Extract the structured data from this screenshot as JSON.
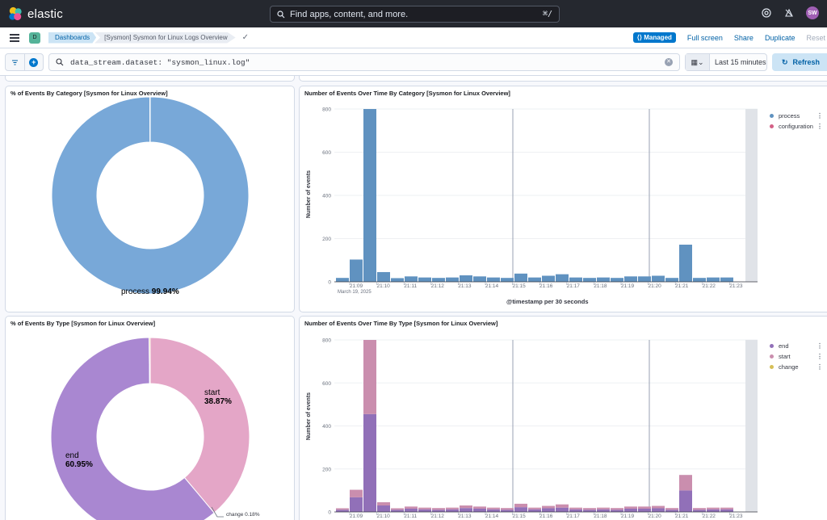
{
  "header": {
    "brand": "elastic",
    "search_placeholder": "Find apps, content, and more.",
    "search_shortcut": "⌘/",
    "avatar_initials": "SW"
  },
  "nav": {
    "space_initial": "D",
    "breadcrumb_root": "Dashboards",
    "breadcrumb_current": "[Sysmon] Sysmon for Linux Logs Overview",
    "managed_badge": "Managed",
    "full_screen": "Full screen",
    "share": "Share",
    "duplicate": "Duplicate",
    "reset": "Reset"
  },
  "query": {
    "text": "data_stream.dataset: \"sysmon_linux.log\"",
    "time_range": "Last 15 minutes",
    "refresh_label": "Refresh"
  },
  "colors": {
    "process": "#6092c0",
    "configuration": "#d36086",
    "end": "#9170b8",
    "start": "#ca8eae",
    "change": "#d6bf57",
    "donut_process": "#78a8d8",
    "donut_end": "#a987d1",
    "donut_start": "#e4a6c7"
  },
  "panels": {
    "category_pie_title": "% of Events By Category [Sysmon for Linux Overview]",
    "category_hist_title": "Number of Events Over Time By Category [Sysmon for Linux Overview]",
    "type_pie_title": "% of Events By Type [Sysmon for Linux Overview]",
    "type_hist_title": "Number of Events Over Time By Type [Sysmon for Linux Overview]"
  },
  "chart_data": [
    {
      "type": "pie",
      "title": "% of Events By Category [Sysmon for Linux Overview]",
      "slices": [
        {
          "name": "process",
          "pct": 99.94
        },
        {
          "name": "configuration",
          "pct": 0.06
        }
      ],
      "label_name": "process",
      "label_value": "99.94%"
    },
    {
      "type": "bar",
      "stacked": true,
      "title": "Number of Events Over Time By Category [Sysmon for Linux Overview]",
      "xlabel": "@timestamp per 30 seconds",
      "ylabel": "Number of events",
      "ylim": [
        0,
        800
      ],
      "yticks": [
        0,
        200,
        400,
        600,
        800
      ],
      "xticks": [
        "21:09",
        "21:10",
        "21:11",
        "21:12",
        "21:13",
        "21:14",
        "21:15",
        "21:16",
        "21:17",
        "21:18",
        "21:19",
        "21:20",
        "21:21",
        "21:22",
        "21:23"
      ],
      "date_label": "March 19, 2025",
      "legend": [
        "process",
        "configuration"
      ],
      "series": [
        {
          "name": "process",
          "values": [
            18,
            103,
            800,
            45,
            17,
            25,
            20,
            18,
            20,
            30,
            25,
            20,
            18,
            38,
            20,
            28,
            35,
            20,
            18,
            20,
            18,
            25,
            25,
            28,
            18,
            172,
            18,
            20,
            20
          ]
        },
        {
          "name": "configuration",
          "values": [
            0,
            0,
            0,
            0,
            0,
            0,
            0,
            0,
            0,
            0,
            0,
            0,
            0,
            0,
            0,
            0,
            0,
            0,
            0,
            0,
            0,
            0,
            0,
            0,
            0,
            0,
            0,
            0,
            0
          ]
        }
      ]
    },
    {
      "type": "pie",
      "title": "% of Events By Type [Sysmon for Linux Overview]",
      "slices": [
        {
          "name": "start",
          "pct": 38.87
        },
        {
          "name": "end",
          "pct": 60.95
        },
        {
          "name": "change",
          "pct": 0.18
        }
      ],
      "labels": [
        {
          "name": "start",
          "value": "38.87%"
        },
        {
          "name": "end",
          "value": "60.95%"
        },
        {
          "name": "change",
          "value": "0.18%"
        }
      ]
    },
    {
      "type": "bar",
      "stacked": true,
      "title": "Number of Events Over Time By Type [Sysmon for Linux Overview]",
      "xlabel": "",
      "ylabel": "Number of events",
      "ylim": [
        0,
        800
      ],
      "yticks": [
        0,
        200,
        400,
        600,
        800
      ],
      "xticks": [
        "21:09",
        "21:10",
        "21:11",
        "21:12",
        "21:13",
        "21:14",
        "21:15",
        "21:16",
        "21:17",
        "21:18",
        "21:19",
        "21:20",
        "21:21",
        "21:22",
        "21:23"
      ],
      "legend": [
        "end",
        "start",
        "change"
      ],
      "series": [
        {
          "name": "end",
          "values": [
            10,
            68,
            455,
            30,
            10,
            15,
            12,
            10,
            12,
            18,
            15,
            12,
            10,
            22,
            12,
            17,
            20,
            12,
            10,
            12,
            10,
            15,
            15,
            17,
            10,
            100,
            10,
            12,
            12
          ]
        },
        {
          "name": "start",
          "values": [
            7,
            35,
            345,
            15,
            7,
            10,
            8,
            8,
            8,
            12,
            10,
            8,
            8,
            16,
            8,
            11,
            15,
            8,
            8,
            8,
            8,
            10,
            10,
            11,
            8,
            72,
            8,
            8,
            8
          ]
        },
        {
          "name": "change",
          "values": [
            0,
            0,
            0,
            0,
            0,
            0,
            0,
            0,
            0,
            0,
            0,
            0,
            0,
            0,
            0,
            0,
            0,
            0,
            0,
            0,
            0,
            0,
            0,
            0,
            0,
            0,
            0,
            0,
            0
          ]
        }
      ]
    }
  ]
}
